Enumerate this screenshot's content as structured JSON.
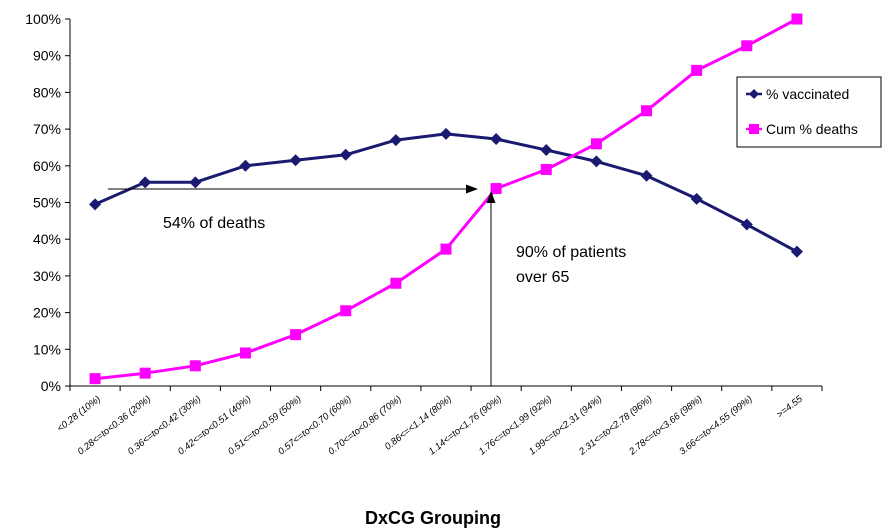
{
  "chart_data": {
    "type": "line",
    "title": "",
    "xlabel": "DxCG Grouping",
    "ylabel": "",
    "ylim": [
      0,
      100
    ],
    "ytick_labels": [
      "0%",
      "10%",
      "20%",
      "30%",
      "40%",
      "50%",
      "60%",
      "70%",
      "80%",
      "90%",
      "100%"
    ],
    "categories": [
      "<0.28 (10%)",
      "0.28<=to<0.36 (20%)",
      "0.36<=to<0.42 (30%)",
      "0.42<=to<0.51 (40%)",
      "0.51<=to<0.59 (50%)",
      "0.57<=to<0.70 (60%)",
      "0.70<=to<0.86 (70%)",
      "0.86<=<1.14 (80%)",
      "1.14<=to<1.76 (90%)",
      "1.76<=to<1.99 (92%)",
      "1.99<=to<2.31 (94%)",
      "2.31<=to<2.78 (96%)",
      "2.78<=to<3.66 (98%)",
      "3.66<=to<4.55 (99%)",
      ">=4.55"
    ],
    "series": [
      {
        "name": "% vaccinated",
        "color": "#1a1a70",
        "marker": "diamond",
        "values": [
          49.5,
          55.5,
          55.5,
          60,
          61.5,
          63,
          67,
          68.7,
          67.3,
          64.3,
          61.2,
          57.3,
          51,
          44,
          36.6
        ]
      },
      {
        "name": "Cum % deaths",
        "color": "#ff00ff",
        "marker": "square",
        "values": [
          2,
          3.5,
          5.5,
          9,
          14,
          20.5,
          28,
          37.3,
          53.8,
          59,
          66,
          75,
          86,
          92.7,
          100
        ]
      }
    ],
    "grid": false,
    "legend": "right",
    "annotations": [
      {
        "text": "54% of deaths",
        "arrow": "horizontal"
      },
      {
        "lines": [
          "90% of patients",
          "over 65"
        ],
        "arrow": "vertical"
      }
    ]
  }
}
